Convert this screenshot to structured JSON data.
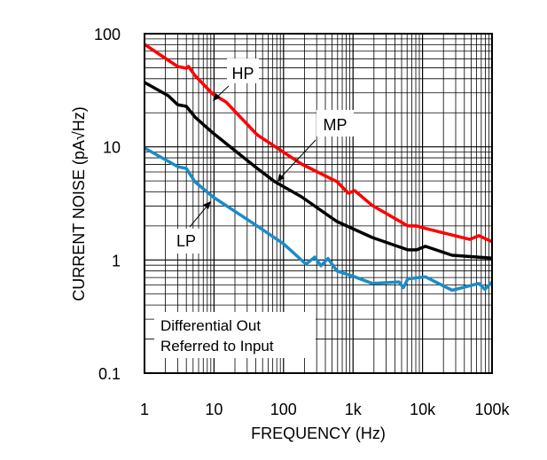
{
  "chart_data": {
    "type": "line",
    "title": "",
    "xlabel": "FREQUENCY (Hz)",
    "ylabel": "CURRENT NOISE (pA√Hz)",
    "xscale": "log",
    "yscale": "log",
    "xlim": [
      1,
      100000
    ],
    "ylim": [
      0.1,
      100
    ],
    "grid": true,
    "xticks": [
      1,
      10,
      100,
      1000,
      10000,
      100000
    ],
    "xtick_labels": [
      "1",
      "10",
      "100",
      "1k",
      "10k",
      "100k"
    ],
    "yticks": [
      0.1,
      1,
      10,
      100
    ],
    "ytick_labels": [
      "0.1",
      "1",
      "10",
      "100"
    ],
    "annotation_box": [
      "Differential Out",
      "Referred to Input"
    ],
    "series": [
      {
        "name": "HP",
        "color": "#ff0000",
        "x": [
          1,
          2.2,
          3.0,
          4.0,
          4.3,
          5.3,
          9.6,
          14.9,
          41.7,
          64.7,
          181,
          586,
          859,
          1055,
          1897,
          6140,
          8240,
          11000,
          47900,
          64500,
          100000
        ],
        "y": [
          80.5,
          58.2,
          51.3,
          49.5,
          51.3,
          42.8,
          29.3,
          24.9,
          12.8,
          10.7,
          7.06,
          4.93,
          3.89,
          4.11,
          3.03,
          2.0,
          2.0,
          1.9,
          1.52,
          1.64,
          1.45
        ]
      },
      {
        "name": "MP",
        "color": "#000000",
        "x": [
          1,
          2.2,
          3.0,
          4.0,
          5.3,
          9.6,
          41.7,
          75,
          181,
          586,
          1897,
          6140,
          8240,
          11000,
          26700,
          100000
        ],
        "y": [
          37.1,
          28.3,
          23.6,
          22.8,
          18.4,
          13.3,
          6.46,
          4.92,
          3.62,
          2.19,
          1.58,
          1.23,
          1.23,
          1.32,
          1.1,
          1.04
        ]
      },
      {
        "name": "LP",
        "color": "#1a8cc8",
        "x": [
          1,
          2.2,
          3.0,
          4.0,
          5.3,
          9.6,
          41.7,
          100,
          210,
          281,
          345,
          437,
          586,
          1055,
          1897,
          4580,
          5300,
          6140,
          11000,
          26700,
          64500,
          79000,
          100000
        ],
        "y": [
          9.77,
          7.45,
          6.68,
          6.44,
          4.92,
          3.62,
          2.0,
          1.39,
          0.92,
          1.06,
          0.89,
          1.03,
          0.8,
          0.71,
          0.62,
          0.64,
          0.57,
          0.68,
          0.71,
          0.54,
          0.62,
          0.55,
          0.64
        ]
      }
    ]
  }
}
